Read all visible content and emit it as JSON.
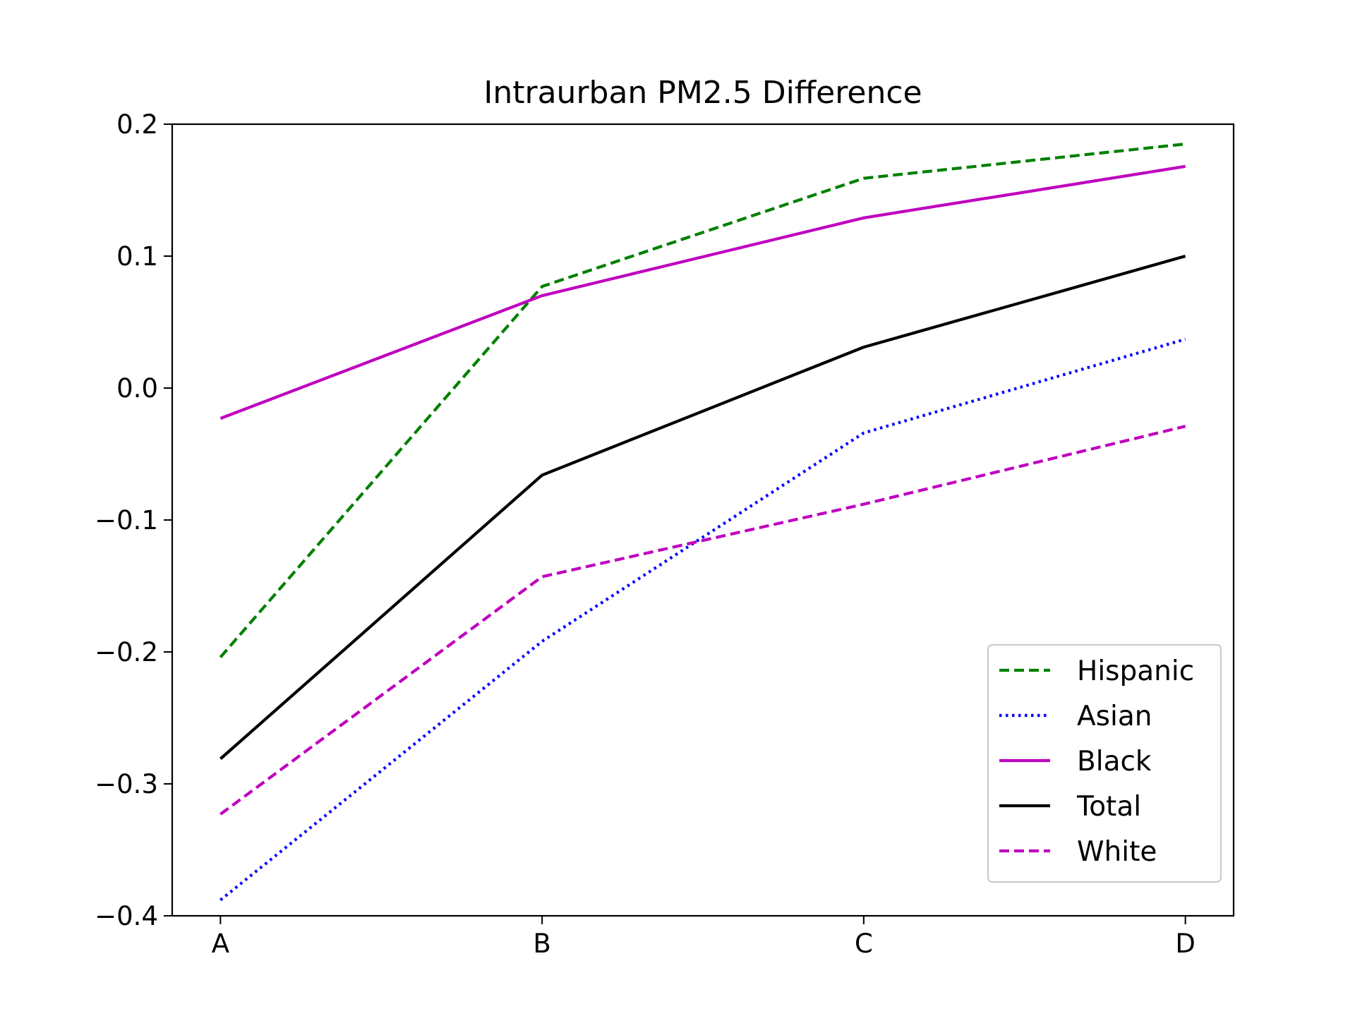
{
  "chart_data": {
    "type": "line",
    "title": "Intraurban PM2.5 Difference",
    "xlabel": "",
    "ylabel": "",
    "categories": [
      "A",
      "B",
      "C",
      "D"
    ],
    "ylim": [
      -0.4,
      0.2
    ],
    "yticks": [
      -0.4,
      -0.3,
      -0.2,
      -0.1,
      0.0,
      0.1,
      0.2
    ],
    "ytick_labels": [
      "−0.4",
      "−0.3",
      "−0.2",
      "−0.1",
      "0.0",
      "0.1",
      "0.2"
    ],
    "grid": false,
    "legend_position": "lower-right",
    "series": [
      {
        "name": "Hispanic",
        "values": [
          -0.204,
          0.077,
          0.159,
          0.185
        ],
        "color": "#008000",
        "style": "dashed"
      },
      {
        "name": "Asian",
        "values": [
          -0.388,
          -0.192,
          -0.034,
          0.037
        ],
        "color": "#0000ff",
        "style": "dotted"
      },
      {
        "name": "Black",
        "values": [
          -0.023,
          0.07,
          0.129,
          0.168
        ],
        "color": "#bf00bf",
        "style": "solid"
      },
      {
        "name": "Total",
        "values": [
          -0.281,
          -0.066,
          0.031,
          0.1
        ],
        "color": "#000000",
        "style": "solid"
      },
      {
        "name": "White",
        "values": [
          -0.323,
          -0.143,
          -0.088,
          -0.029
        ],
        "color": "#bf00bf",
        "style": "dashed"
      }
    ]
  }
}
